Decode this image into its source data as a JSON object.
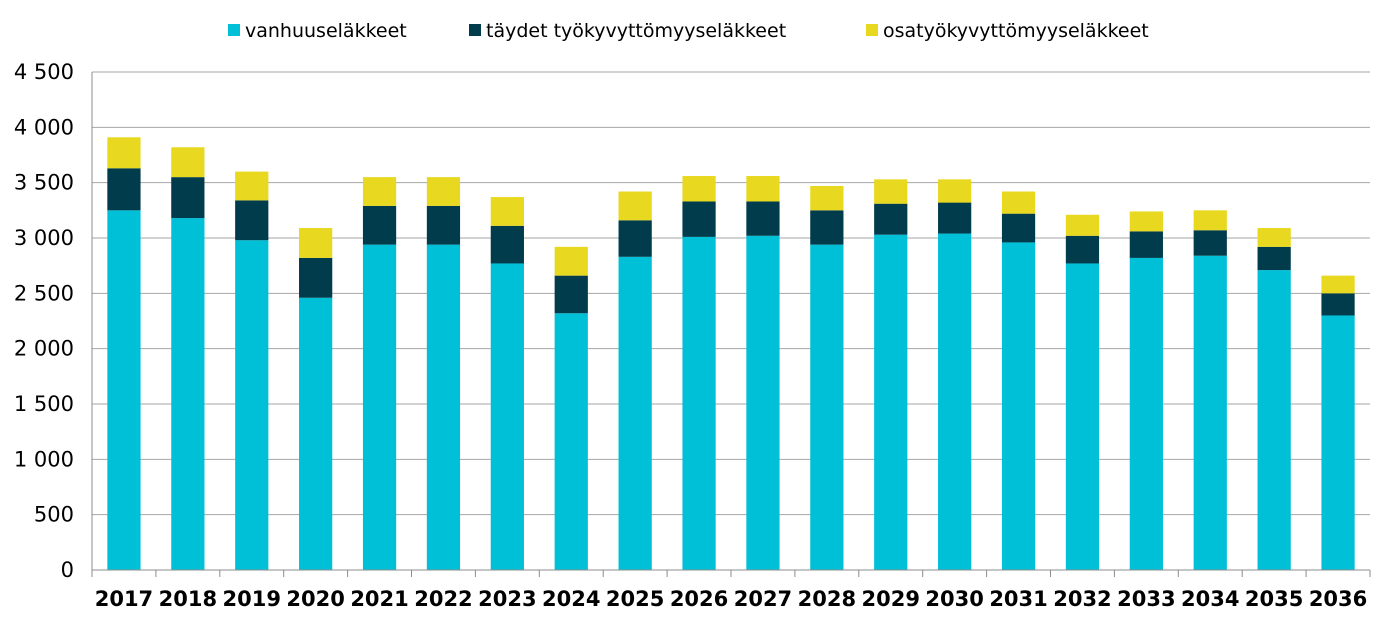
{
  "chart_data": {
    "type": "bar",
    "stacked": true,
    "categories": [
      "2017",
      "2018",
      "2019",
      "2020",
      "2021",
      "2022",
      "2023",
      "2024",
      "2025",
      "2026",
      "2027",
      "2028",
      "2029",
      "2030",
      "2031",
      "2032",
      "2033",
      "2034",
      "2035",
      "2036"
    ],
    "series": [
      {
        "name": "vanhuuseläkkeet",
        "color": "#00c0d8",
        "values": [
          3250,
          3180,
          2980,
          2460,
          2940,
          2940,
          2770,
          2320,
          2830,
          3010,
          3020,
          2940,
          3030,
          3040,
          2960,
          2770,
          2820,
          2840,
          2710,
          2300
        ]
      },
      {
        "name": "täydet työkyvyttömyyseläkkeet",
        "color": "#003c4c",
        "values": [
          380,
          370,
          360,
          360,
          350,
          350,
          340,
          340,
          330,
          320,
          310,
          310,
          280,
          280,
          260,
          250,
          240,
          230,
          210,
          200
        ]
      },
      {
        "name": "osatyökyvyttömyyseläkkeet",
        "color": "#e8d820",
        "values": [
          280,
          270,
          260,
          270,
          260,
          260,
          260,
          260,
          260,
          230,
          230,
          220,
          220,
          210,
          200,
          190,
          180,
          180,
          170,
          160
        ]
      }
    ],
    "y_ticks": [
      "0",
      "500",
      "1 000",
      "1 500",
      "2 000",
      "2 500",
      "3 000",
      "3 500",
      "4 000",
      "4 500"
    ],
    "ylim": [
      0,
      4500
    ],
    "grid": true,
    "legend": "top",
    "title": "",
    "xlabel": "",
    "ylabel": ""
  }
}
